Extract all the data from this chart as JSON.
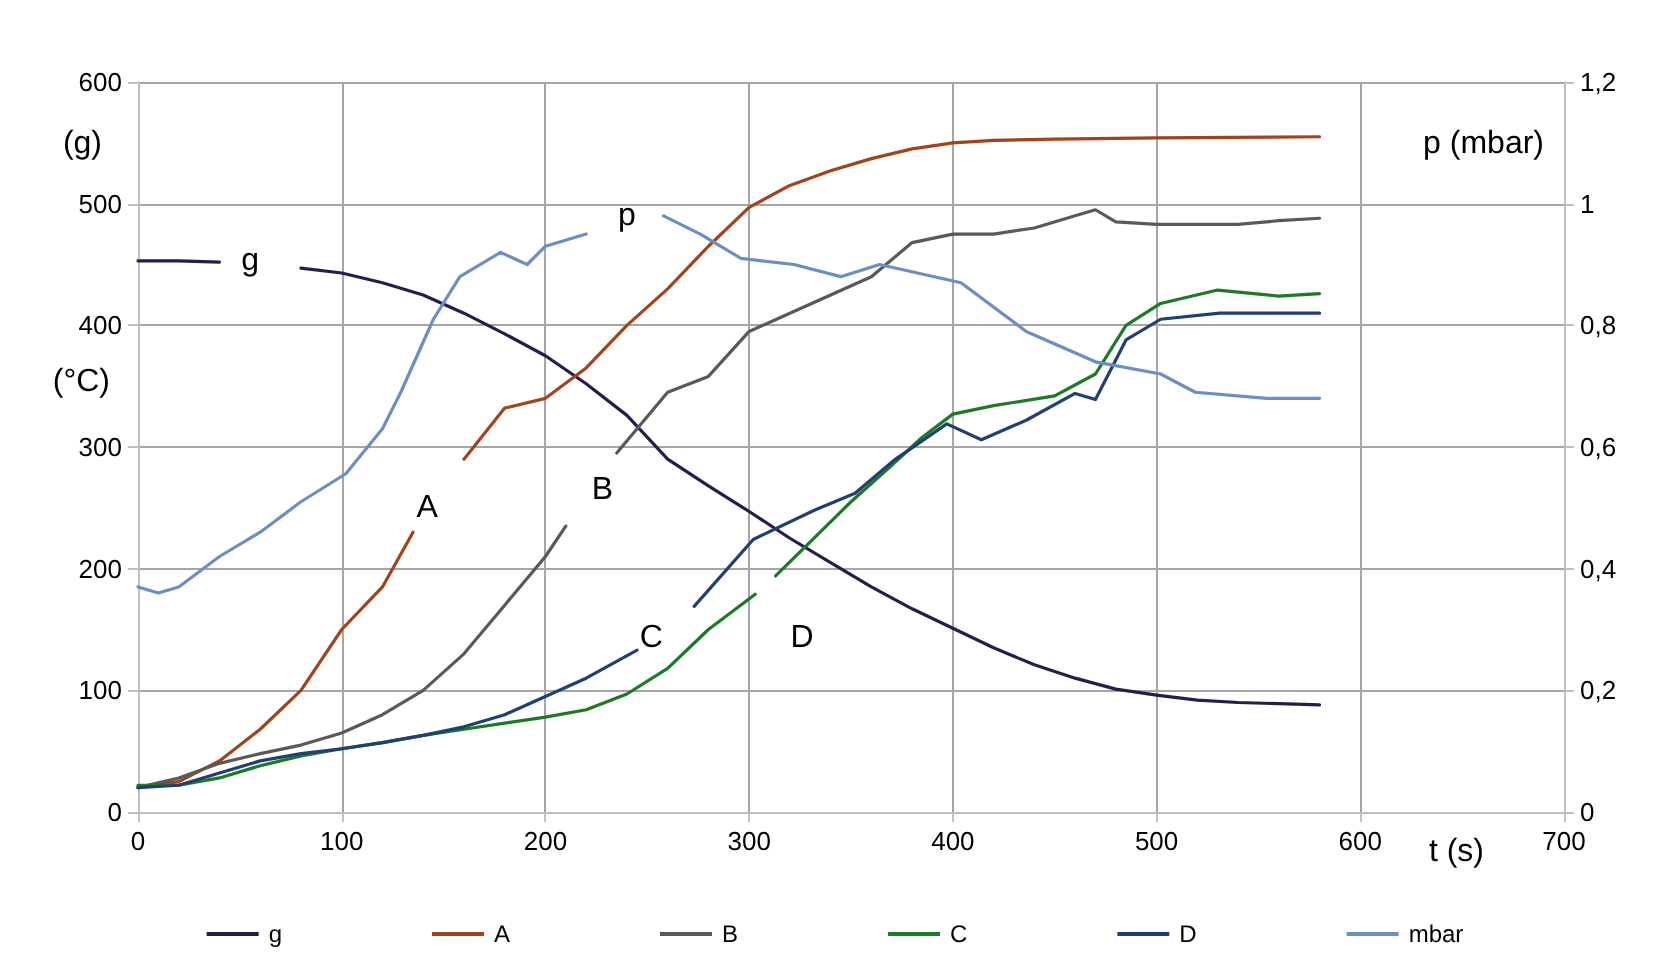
{
  "chart_data": {
    "type": "line",
    "xlabel": "t (s)",
    "ylabel": "(g)",
    "y2label": "p (mbar)",
    "annotations": [
      "(°C)",
      "g",
      "A",
      "B",
      "C",
      "D",
      "p"
    ],
    "xlim": [
      0,
      700
    ],
    "xticks": [
      0,
      100,
      200,
      300,
      400,
      500,
      600,
      700
    ],
    "ylim": [
      0,
      600
    ],
    "yticks": [
      0,
      100,
      200,
      300,
      400,
      500,
      600
    ],
    "y2lim": [
      0,
      1.2
    ],
    "y2ticks": [
      0,
      {
        "value": 0.2,
        "label": "0,2"
      },
      {
        "value": 0.4,
        "label": "0,4"
      },
      {
        "value": 0.6,
        "label": "0,6"
      },
      {
        "value": 0.8,
        "label": "0,8"
      },
      1,
      {
        "value": 1.2,
        "label": "1,2"
      }
    ],
    "grid": true,
    "legend": "bottom",
    "marker": "none",
    "line_style": "solid",
    "series": [
      {
        "name": "g",
        "color": "#2b1b4d",
        "x": [
          0,
          20,
          40,
          60,
          80,
          100,
          120,
          140,
          160,
          180,
          200,
          220,
          240,
          260,
          280,
          300,
          320,
          340,
          360,
          380,
          400,
          420,
          440,
          460,
          480,
          500,
          520,
          540,
          560,
          580
        ],
        "values": [
          453,
          453,
          452,
          null,
          447,
          443,
          435,
          425,
          410,
          393,
          375,
          352,
          326,
          290,
          268,
          247,
          225,
          205,
          185,
          167,
          151,
          135,
          121,
          110,
          101,
          96,
          92,
          90,
          89,
          88
        ]
      },
      {
        "name": "A",
        "color": "#a3431c",
        "x": [
          0,
          20,
          40,
          60,
          80,
          100,
          120,
          135,
          148,
          160,
          180,
          200,
          220,
          240,
          260,
          280,
          300,
          320,
          340,
          360,
          380,
          400,
          420,
          450,
          500,
          580
        ],
        "values": [
          20,
          25,
          42,
          68,
          100,
          150,
          185,
          230,
          null,
          290,
          332,
          340,
          365,
          400,
          430,
          465,
          497,
          515,
          527,
          537,
          545,
          550,
          552,
          553,
          554,
          555
        ]
      },
      {
        "name": "B",
        "color": "#595959",
        "x": [
          0,
          20,
          40,
          60,
          80,
          100,
          120,
          140,
          160,
          180,
          200,
          210,
          222,
          235,
          260,
          280,
          300,
          320,
          340,
          360,
          380,
          400,
          420,
          440,
          460,
          470,
          480,
          500,
          520,
          540,
          560,
          580
        ],
        "values": [
          20,
          28,
          40,
          48,
          55,
          65,
          80,
          100,
          130,
          170,
          210,
          235,
          null,
          295,
          345,
          358,
          395,
          410,
          425,
          440,
          468,
          475,
          475,
          480,
          490,
          495,
          485,
          483,
          483,
          483,
          486,
          488
        ]
      },
      {
        "name": "C",
        "color": "#1b7a23",
        "x": [
          0,
          20,
          40,
          60,
          80,
          100,
          120,
          140,
          160,
          180,
          200,
          220,
          240,
          260,
          280,
          303,
          308,
          313,
          330,
          350,
          370,
          385,
          400,
          420,
          450,
          470,
          485,
          502,
          530,
          560,
          580
        ],
        "values": [
          22,
          22,
          28,
          38,
          46,
          52,
          57,
          63,
          68,
          73,
          78,
          84,
          97,
          118,
          150,
          179,
          null,
          194,
          222,
          255,
          285,
          308,
          327,
          334,
          342,
          360,
          400,
          418,
          429,
          424,
          426
        ]
      },
      {
        "name": "D",
        "color": "#1f3f75",
        "x": [
          0,
          20,
          40,
          60,
          80,
          100,
          120,
          140,
          160,
          180,
          200,
          220,
          245,
          258,
          273,
          302,
          332,
          352,
          371,
          397,
          414,
          436,
          460,
          470,
          485,
          502,
          531,
          580
        ],
        "values": [
          20,
          22,
          32,
          42,
          48,
          52,
          57,
          63,
          70,
          80,
          95,
          110,
          133,
          null,
          169,
          224,
          248,
          262,
          289,
          319,
          306,
          322,
          344,
          339,
          388,
          405,
          410,
          410
        ]
      },
      {
        "name": "mbar",
        "color": "#6d8ec4",
        "axis": "y2",
        "x": [
          0,
          10,
          20,
          40,
          60,
          80,
          102,
          120,
          129,
          145,
          158,
          178,
          191,
          200,
          220,
          240,
          258,
          276,
          296,
          322,
          345,
          364,
          404,
          436,
          470,
          502,
          519,
          554,
          580
        ],
        "values": [
          0.37,
          0.36,
          0.37,
          0.42,
          0.46,
          0.51,
          0.556,
          0.63,
          0.69,
          0.81,
          0.88,
          0.92,
          0.9,
          0.93,
          0.95,
          null,
          0.98,
          0.95,
          0.91,
          0.9,
          0.88,
          0.9,
          0.87,
          0.79,
          0.74,
          0.72,
          0.69,
          0.68,
          0.68
        ]
      }
    ]
  }
}
